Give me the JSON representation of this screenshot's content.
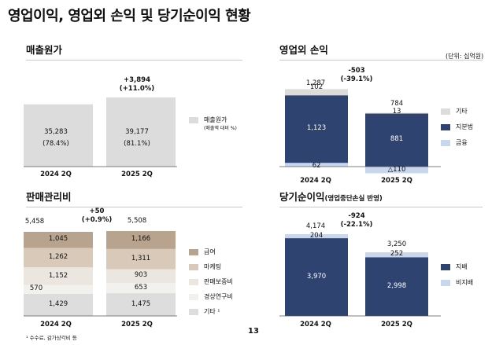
{
  "page": {
    "title": "영업이익, 영업외 손익 및 당기순이익 현황",
    "page_number": "13",
    "footnote": "¹ 수수료, 감가상각비 등"
  },
  "colors": {
    "light_gray": "#dcdcdc",
    "navy": "#2f4370",
    "light_blue": "#c9d7ee",
    "sg_tan1": "#b8a48e",
    "sg_tan2": "#d8c9b8",
    "sg_light": "#ebe6df",
    "sg_lighter": "#f3f1ee",
    "sg_gray": "#dddddd"
  },
  "chart_data": [
    {
      "id": "cogs",
      "type": "bar",
      "title": "매출원가",
      "categories": [
        "2024 2Q",
        "2025 2Q"
      ],
      "series": [
        {
          "name": "매출원가",
          "values": [
            35283,
            39177
          ]
        }
      ],
      "value_labels": [
        "35,283",
        "39,177"
      ],
      "ratio_labels": [
        "(78.4%)",
        "(81.1%)"
      ],
      "change_label": "+3,894",
      "change_pct": "(+11.0%)",
      "legend": [
        {
          "label": "매출원가",
          "sublabel": "(매출액 대비 %)",
          "color": "#dcdcdc"
        }
      ]
    },
    {
      "id": "sga",
      "type": "bar",
      "stacked": true,
      "title": "판매관리비",
      "categories": [
        "2024 2Q",
        "2025 2Q"
      ],
      "series": [
        {
          "name": "급여",
          "values": [
            1045,
            1166
          ],
          "color": "#b8a48e"
        },
        {
          "name": "마케팅",
          "values": [
            1262,
            1311
          ],
          "color": "#d8c9b8"
        },
        {
          "name": "판매보증비",
          "values": [
            1152,
            903
          ],
          "color": "#ebe6df"
        },
        {
          "name": "경상연구비",
          "values": [
            570,
            653
          ],
          "color": "#f3f1ee"
        },
        {
          "name": "기타 ¹",
          "values": [
            1429,
            1475
          ],
          "color": "#dddddd"
        }
      ],
      "totals": [
        "5,458",
        "5,508"
      ],
      "change_label": "+50",
      "change_pct": "(+0.9%)"
    },
    {
      "id": "nonop",
      "type": "bar",
      "stacked": true,
      "title": "영업외 손익",
      "unit": "(단위: 십억원)",
      "categories": [
        "2024 2Q",
        "2025 2Q"
      ],
      "series": [
        {
          "name": "기타",
          "values": [
            102,
            13
          ],
          "color": "#dcdcdc"
        },
        {
          "name": "지분법",
          "values": [
            1123,
            881
          ],
          "color": "#2f4370"
        },
        {
          "name": "금융",
          "values": [
            62,
            -110
          ],
          "color": "#c9d7ee"
        }
      ],
      "segment_labels": {
        "기타": [
          "102",
          "13"
        ],
        "지분법": [
          "1,123",
          "881"
        ],
        "금융": [
          "62",
          "△110"
        ]
      },
      "totals": [
        "1,287",
        "784"
      ],
      "change_label": "-503",
      "change_pct": "(-39.1%)"
    },
    {
      "id": "netincome",
      "type": "bar",
      "stacked": true,
      "title": "당기순이익",
      "subtitle": "(영업중단손실 반영)",
      "categories": [
        "2024 2Q",
        "2025 2Q"
      ],
      "series": [
        {
          "name": "지배",
          "values": [
            3970,
            2998
          ],
          "color": "#2f4370"
        },
        {
          "name": "비지배",
          "values": [
            204,
            252
          ],
          "color": "#c9d7ee"
        }
      ],
      "totals": [
        "4,174",
        "3,250"
      ],
      "change_label": "-924",
      "change_pct": "(-22.1%)"
    }
  ]
}
